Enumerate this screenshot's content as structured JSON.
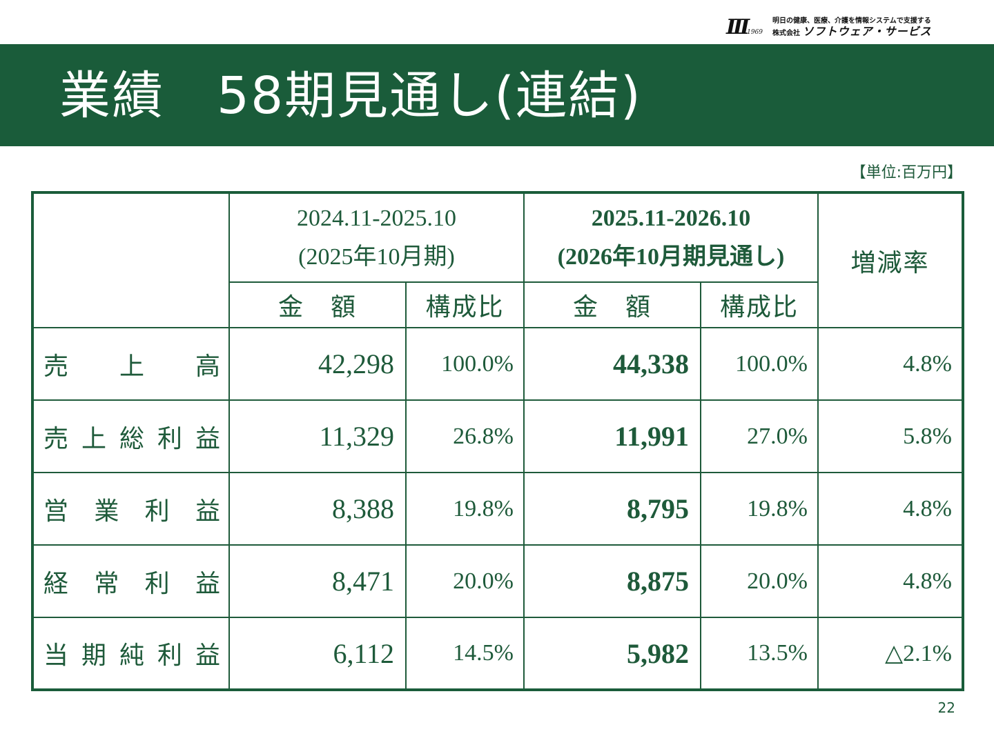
{
  "logo": {
    "mark": "III",
    "year": "1969",
    "tagline": "明日の健康、医療、介護を情報システムで支援する",
    "company_prefix": "株式会社",
    "company_name": "ソフトウェア・サービス"
  },
  "title": "業績　58期見通し(連結)",
  "unit": "【単位:百万円】",
  "table": {
    "period1": {
      "range": "2024.11-2025.10",
      "label": "(2025年10月期)"
    },
    "period2": {
      "range": "2025.11-2026.10",
      "label": "(2026年10月期見通し)"
    },
    "change_header": "増減率",
    "amount_header": "金　額",
    "ratio_header": "構成比",
    "rows": [
      {
        "label": [
          "売",
          "上",
          "高"
        ],
        "a1": "42,298",
        "r1": "100.0%",
        "a2": "44,338",
        "r2": "100.0%",
        "chg": "4.8%"
      },
      {
        "label": [
          "売",
          "上",
          "総",
          "利",
          "益"
        ],
        "a1": "11,329",
        "r1": "26.8%",
        "a2": "11,991",
        "r2": "27.0%",
        "chg": "5.8%"
      },
      {
        "label": [
          "営",
          "業",
          "利",
          "益"
        ],
        "a1": "8,388",
        "r1": "19.8%",
        "a2": "8,795",
        "r2": "19.8%",
        "chg": "4.8%"
      },
      {
        "label": [
          "経",
          "常",
          "利",
          "益"
        ],
        "a1": "8,471",
        "r1": "20.0%",
        "a2": "8,875",
        "r2": "20.0%",
        "chg": "4.8%"
      },
      {
        "label": [
          "当",
          "期",
          "純",
          "利",
          "益"
        ],
        "a1": "6,112",
        "r1": "14.5%",
        "a2": "5,982",
        "r2": "13.5%",
        "chg": "△2.1%"
      }
    ]
  },
  "page_number": "22",
  "colors": {
    "brand_green": "#1a5c3a"
  }
}
